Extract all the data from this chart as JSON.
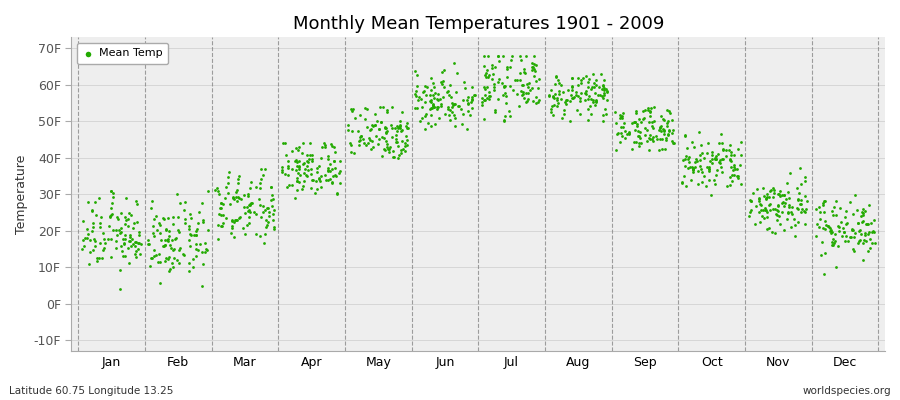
{
  "title": "Monthly Mean Temperatures 1901 - 2009",
  "ylabel": "Temperature",
  "xlabel_months": [
    "Jan",
    "Feb",
    "Mar",
    "Apr",
    "May",
    "Jun",
    "Jul",
    "Aug",
    "Sep",
    "Oct",
    "Nov",
    "Dec"
  ],
  "subtitle_left": "Latitude 60.75 Longitude 13.25",
  "subtitle_right": "worldspecies.org",
  "legend_label": "Mean Temp",
  "dot_color": "#22aa00",
  "bg_color": "#f0f0f0",
  "plot_bg_color": "#eeeeee",
  "ytick_labels": [
    "-10F",
    "0F",
    "10F",
    "20F",
    "30F",
    "40F",
    "50F",
    "60F",
    "70F"
  ],
  "ytick_values": [
    -10,
    0,
    10,
    20,
    30,
    40,
    50,
    60,
    70
  ],
  "ylim": [
    -13,
    73
  ],
  "num_years": 109,
  "monthly_means_F": [
    19,
    17,
    26,
    37,
    47,
    56,
    60,
    57,
    48,
    38,
    27,
    21
  ],
  "monthly_stds_F": [
    5,
    5,
    5,
    4,
    4,
    4,
    4,
    3,
    3,
    4,
    4,
    4
  ],
  "monthly_min_F": [
    -1,
    -2,
    13,
    26,
    36,
    48,
    50,
    50,
    42,
    27,
    14,
    5
  ],
  "monthly_max_F": [
    31,
    31,
    37,
    44,
    54,
    66,
    68,
    63,
    54,
    52,
    41,
    30
  ]
}
